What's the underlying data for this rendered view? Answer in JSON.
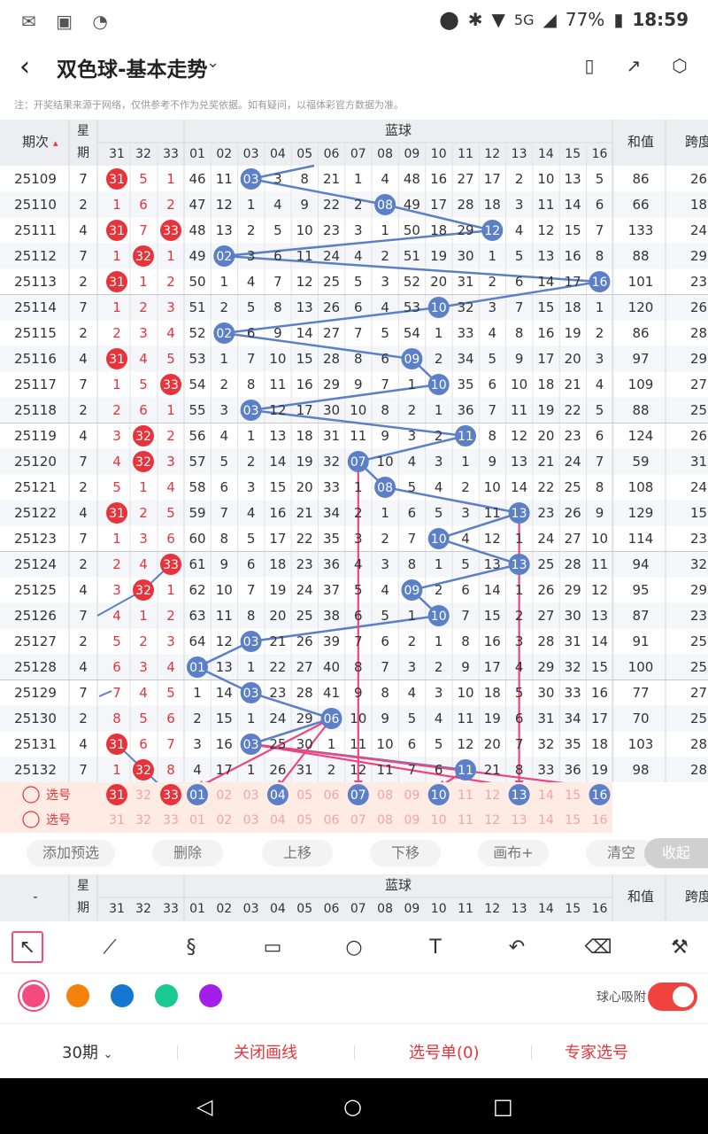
{
  "status": {
    "left_icons": "✉ ▣ ◔",
    "location_icon": "location-icon",
    "network": "5G",
    "battery": "77%",
    "time": "18:59"
  },
  "header": {
    "title": "双色球-基本走势"
  },
  "notice": "注：开奖结果来源于网络，仅供参考不作为兑奖依据。如有疑问，以福体彩官方数据为准。",
  "table": {
    "col_issue": "期次",
    "col_week": "星期",
    "blue_header": "蓝球",
    "col_sum": "和值",
    "col_span": "跨度",
    "red_tail": [
      "31",
      "32",
      "33"
    ],
    "blue_cols": [
      "01",
      "02",
      "03",
      "04",
      "05",
      "06",
      "07",
      "08",
      "09",
      "10",
      "11",
      "12",
      "13",
      "14",
      "15",
      "16"
    ],
    "rows": [
      {
        "issue": "25109",
        "week": "7",
        "r": [
          "31",
          "5",
          "1"
        ],
        "rh": [
          0
        ],
        "b": [
          "46",
          "11",
          "03",
          "3",
          "8",
          "21",
          "1",
          "4",
          "48",
          "16",
          "27",
          "17",
          "2",
          "10",
          "13",
          "5"
        ],
        "bh": 2,
        "sum": "86",
        "span": "26"
      },
      {
        "issue": "25110",
        "week": "2",
        "r": [
          "1",
          "6",
          "2"
        ],
        "rh": [],
        "b": [
          "47",
          "12",
          "1",
          "4",
          "9",
          "22",
          "2",
          "08",
          "49",
          "17",
          "28",
          "18",
          "3",
          "11",
          "14",
          "6"
        ],
        "bh": 7,
        "sum": "66",
        "span": "18"
      },
      {
        "issue": "25111",
        "week": "4",
        "r": [
          "31",
          "7",
          "33"
        ],
        "rh": [
          0,
          2
        ],
        "b": [
          "48",
          "13",
          "2",
          "5",
          "10",
          "23",
          "3",
          "1",
          "50",
          "18",
          "29",
          "12",
          "4",
          "12",
          "15",
          "7"
        ],
        "bh": 11,
        "sum": "133",
        "span": "24"
      },
      {
        "issue": "25112",
        "week": "7",
        "r": [
          "1",
          "32",
          "1"
        ],
        "rh": [
          1
        ],
        "b": [
          "49",
          "02",
          "3",
          "6",
          "11",
          "24",
          "4",
          "2",
          "51",
          "19",
          "30",
          "1",
          "5",
          "13",
          "16",
          "8"
        ],
        "bh": 1,
        "sum": "88",
        "span": "29"
      },
      {
        "issue": "25113",
        "week": "2",
        "r": [
          "31",
          "1",
          "2"
        ],
        "rh": [
          0
        ],
        "b": [
          "50",
          "1",
          "4",
          "7",
          "12",
          "25",
          "5",
          "3",
          "52",
          "20",
          "31",
          "2",
          "6",
          "14",
          "17",
          "16"
        ],
        "bh": 15,
        "sum": "101",
        "span": "23"
      },
      {
        "issue": "25114",
        "week": "7",
        "r": [
          "1",
          "2",
          "3"
        ],
        "rh": [],
        "b": [
          "51",
          "2",
          "5",
          "8",
          "13",
          "26",
          "6",
          "4",
          "53",
          "10",
          "32",
          "3",
          "7",
          "15",
          "18",
          "1"
        ],
        "bh": 9,
        "sum": "120",
        "span": "26"
      },
      {
        "issue": "25115",
        "week": "2",
        "r": [
          "2",
          "3",
          "4"
        ],
        "rh": [],
        "b": [
          "52",
          "02",
          "6",
          "9",
          "14",
          "27",
          "7",
          "5",
          "54",
          "1",
          "33",
          "4",
          "8",
          "16",
          "19",
          "2"
        ],
        "bh": 1,
        "sum": "86",
        "span": "28"
      },
      {
        "issue": "25116",
        "week": "4",
        "r": [
          "31",
          "4",
          "5"
        ],
        "rh": [
          0
        ],
        "b": [
          "53",
          "1",
          "7",
          "10",
          "15",
          "28",
          "8",
          "6",
          "09",
          "2",
          "34",
          "5",
          "9",
          "17",
          "20",
          "3"
        ],
        "bh": 8,
        "sum": "97",
        "span": "29"
      },
      {
        "issue": "25117",
        "week": "7",
        "r": [
          "1",
          "5",
          "33"
        ],
        "rh": [
          2
        ],
        "b": [
          "54",
          "2",
          "8",
          "11",
          "16",
          "29",
          "9",
          "7",
          "1",
          "10",
          "35",
          "6",
          "10",
          "18",
          "21",
          "4"
        ],
        "bh": 9,
        "sum": "109",
        "span": "27"
      },
      {
        "issue": "25118",
        "week": "2",
        "r": [
          "2",
          "6",
          "1"
        ],
        "rh": [],
        "b": [
          "55",
          "3",
          "03",
          "12",
          "17",
          "30",
          "10",
          "8",
          "2",
          "1",
          "36",
          "7",
          "11",
          "19",
          "22",
          "5"
        ],
        "bh": 2,
        "sum": "88",
        "span": "25"
      },
      {
        "issue": "25119",
        "week": "4",
        "r": [
          "3",
          "32",
          "2"
        ],
        "rh": [
          1
        ],
        "b": [
          "56",
          "4",
          "1",
          "13",
          "18",
          "31",
          "11",
          "9",
          "3",
          "2",
          "11",
          "8",
          "12",
          "20",
          "23",
          "6"
        ],
        "bh": 10,
        "sum": "124",
        "span": "26"
      },
      {
        "issue": "25120",
        "week": "7",
        "r": [
          "4",
          "32",
          "3"
        ],
        "rh": [
          1
        ],
        "b": [
          "57",
          "5",
          "2",
          "14",
          "19",
          "32",
          "07",
          "10",
          "4",
          "3",
          "1",
          "9",
          "13",
          "21",
          "24",
          "7"
        ],
        "bh": 6,
        "sum": "59",
        "span": "31"
      },
      {
        "issue": "25121",
        "week": "2",
        "r": [
          "5",
          "1",
          "4"
        ],
        "rh": [],
        "b": [
          "58",
          "6",
          "3",
          "15",
          "20",
          "33",
          "1",
          "08",
          "5",
          "4",
          "2",
          "10",
          "14",
          "22",
          "25",
          "8"
        ],
        "bh": 7,
        "sum": "108",
        "span": "24"
      },
      {
        "issue": "25122",
        "week": "4",
        "r": [
          "31",
          "2",
          "5"
        ],
        "rh": [
          0
        ],
        "b": [
          "59",
          "7",
          "4",
          "16",
          "21",
          "34",
          "2",
          "1",
          "6",
          "5",
          "3",
          "11",
          "13",
          "23",
          "26",
          "9"
        ],
        "bh": 12,
        "sum": "129",
        "span": "15"
      },
      {
        "issue": "25123",
        "week": "7",
        "r": [
          "1",
          "3",
          "6"
        ],
        "rh": [],
        "b": [
          "60",
          "8",
          "5",
          "17",
          "22",
          "35",
          "3",
          "2",
          "7",
          "10",
          "4",
          "12",
          "1",
          "24",
          "27",
          "10"
        ],
        "bh": 9,
        "sum": "114",
        "span": "23"
      },
      {
        "issue": "25124",
        "week": "2",
        "r": [
          "2",
          "4",
          "33"
        ],
        "rh": [
          2
        ],
        "b": [
          "61",
          "9",
          "6",
          "18",
          "23",
          "36",
          "4",
          "3",
          "8",
          "1",
          "5",
          "13",
          "13",
          "25",
          "28",
          "11"
        ],
        "bh": 12,
        "sum": "94",
        "span": "32"
      },
      {
        "issue": "25125",
        "week": "4",
        "r": [
          "3",
          "32",
          "1"
        ],
        "rh": [
          1
        ],
        "b": [
          "62",
          "10",
          "7",
          "19",
          "24",
          "37",
          "5",
          "4",
          "09",
          "2",
          "6",
          "14",
          "1",
          "26",
          "29",
          "12"
        ],
        "bh": 8,
        "sum": "95",
        "span": "29"
      },
      {
        "issue": "25126",
        "week": "7",
        "r": [
          "4",
          "1",
          "2"
        ],
        "rh": [],
        "b": [
          "63",
          "11",
          "8",
          "20",
          "25",
          "38",
          "6",
          "5",
          "1",
          "10",
          "7",
          "15",
          "2",
          "27",
          "30",
          "13"
        ],
        "bh": 9,
        "sum": "87",
        "span": "23"
      },
      {
        "issue": "25127",
        "week": "2",
        "r": [
          "5",
          "2",
          "3"
        ],
        "rh": [],
        "b": [
          "64",
          "12",
          "03",
          "21",
          "26",
          "39",
          "7",
          "6",
          "2",
          "1",
          "8",
          "16",
          "3",
          "28",
          "31",
          "14"
        ],
        "bh": 2,
        "sum": "91",
        "span": "25"
      },
      {
        "issue": "25128",
        "week": "4",
        "r": [
          "6",
          "3",
          "4"
        ],
        "rh": [],
        "b": [
          "01",
          "13",
          "1",
          "22",
          "27",
          "40",
          "8",
          "7",
          "3",
          "2",
          "9",
          "17",
          "4",
          "29",
          "32",
          "15"
        ],
        "bh": 0,
        "sum": "100",
        "span": "25"
      },
      {
        "issue": "25129",
        "week": "7",
        "r": [
          "7",
          "4",
          "5"
        ],
        "rh": [],
        "b": [
          "1",
          "14",
          "03",
          "23",
          "28",
          "41",
          "9",
          "8",
          "4",
          "3",
          "10",
          "18",
          "5",
          "30",
          "33",
          "16"
        ],
        "bh": 2,
        "sum": "77",
        "span": "27"
      },
      {
        "issue": "25130",
        "week": "2",
        "r": [
          "8",
          "5",
          "6"
        ],
        "rh": [],
        "b": [
          "2",
          "15",
          "1",
          "24",
          "29",
          "06",
          "10",
          "9",
          "5",
          "4",
          "11",
          "19",
          "6",
          "31",
          "34",
          "17"
        ],
        "bh": 5,
        "sum": "70",
        "span": "25"
      },
      {
        "issue": "25131",
        "week": "4",
        "r": [
          "31",
          "6",
          "7"
        ],
        "rh": [
          0
        ],
        "b": [
          "3",
          "16",
          "03",
          "25",
          "30",
          "1",
          "11",
          "10",
          "6",
          "5",
          "12",
          "20",
          "7",
          "32",
          "35",
          "18"
        ],
        "bh": 2,
        "sum": "103",
        "span": "28"
      },
      {
        "issue": "25132",
        "week": "7",
        "r": [
          "1",
          "32",
          "8"
        ],
        "rh": [
          1
        ],
        "b": [
          "4",
          "17",
          "1",
          "26",
          "31",
          "2",
          "12",
          "11",
          "7",
          "6",
          "11",
          "21",
          "8",
          "33",
          "36",
          "19"
        ],
        "bh": 10,
        "sum": "98",
        "span": "28"
      }
    ],
    "select_label": "选号",
    "pick_red_selected": [
      0,
      2
    ],
    "pick_blue_selected": [
      0,
      3,
      6,
      9,
      12,
      15
    ]
  },
  "actions": {
    "add_preset": "添加预选",
    "delete": "删除",
    "move_up": "上移",
    "move_down": "下移",
    "canvas": "画布+",
    "clear": "清空",
    "collapse": "收起"
  },
  "footer_header": {
    "dash": "-"
  },
  "drawing": {
    "colors": [
      "#f44b7f",
      "#f5820d",
      "#1677d2",
      "#19c98f",
      "#a41eea"
    ],
    "snap_label": "球心吸附",
    "snap_on": true
  },
  "bottom": {
    "periods": "30期",
    "close_drawing": "关闭画线",
    "pick_list": "选号单(0)",
    "expert_pick": "专家选号"
  }
}
